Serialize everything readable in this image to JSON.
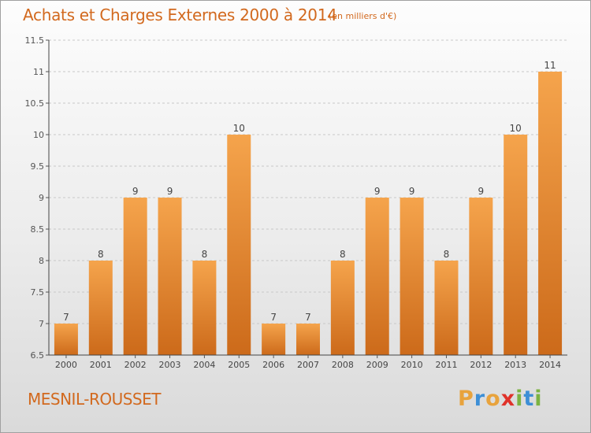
{
  "header": {
    "title": "Achats et Charges Externes 2000 à 2014",
    "subtitle": "(en milliers d'€)"
  },
  "footer": {
    "commune": "MESNIL-ROUSSET",
    "brand": "Proxiti",
    "brand_letters": [
      {
        "char": "P",
        "color": "#e8a33d"
      },
      {
        "char": "r",
        "color": "#3d8fd6"
      },
      {
        "char": "o",
        "color": "#e8a33d"
      },
      {
        "char": "x",
        "color": "#e0322a"
      },
      {
        "char": "i",
        "color": "#7cb342"
      },
      {
        "char": "t",
        "color": "#3d8fd6"
      },
      {
        "char": "i",
        "color": "#7cb342"
      }
    ]
  },
  "colors": {
    "bar_top": "#f5a44c",
    "bar_bottom": "#cc6a1a",
    "title": "#d2691e",
    "grid": "#c8c8c8"
  },
  "chart_data": {
    "type": "bar",
    "categories": [
      "2000",
      "2001",
      "2002",
      "2003",
      "2004",
      "2005",
      "2006",
      "2007",
      "2008",
      "2009",
      "2010",
      "2011",
      "2012",
      "2013",
      "2014"
    ],
    "values": [
      7,
      8,
      9,
      9,
      8,
      10,
      7,
      7,
      8,
      9,
      9,
      8,
      9,
      10,
      11
    ],
    "data_labels": [
      "7",
      "8",
      "9",
      "9",
      "8",
      "10",
      "7",
      "7",
      "8",
      "9",
      "9",
      "8",
      "9",
      "10",
      "11"
    ],
    "ylim": [
      6.5,
      11.5
    ],
    "yticks": [
      6.5,
      7,
      7.5,
      8,
      8.5,
      9,
      9.5,
      10,
      10.5,
      11,
      11.5
    ],
    "ytick_labels": [
      "6.5",
      "7",
      "7.5",
      "8",
      "8.5",
      "9",
      "9.5",
      "10",
      "10.5",
      "11",
      "11.5"
    ],
    "grid": "horizontal dashed",
    "legend": "none"
  }
}
